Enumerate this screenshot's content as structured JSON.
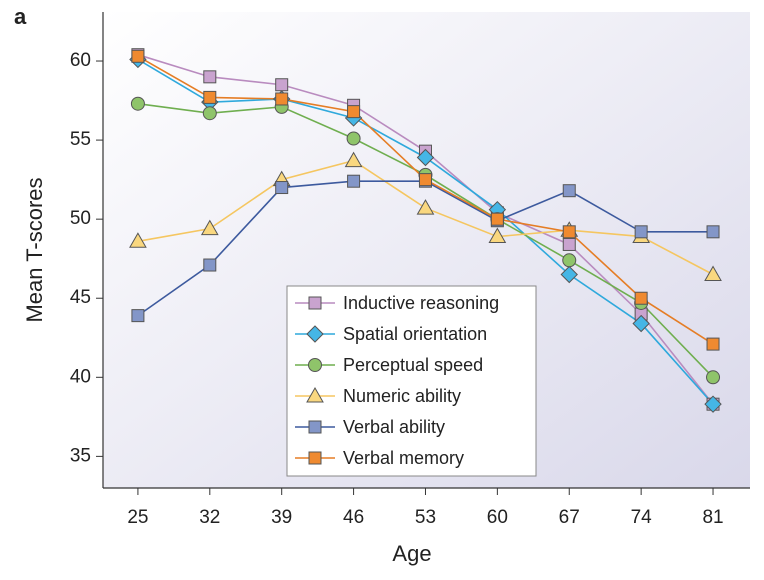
{
  "chart_data": {
    "type": "line",
    "panel_label": "a",
    "x_label": "Age",
    "y_label": "Mean T-scores",
    "x": [
      25,
      32,
      39,
      46,
      53,
      60,
      67,
      74,
      81
    ],
    "xlim": [
      21.6,
      84.6
    ],
    "xticks": [
      25,
      32,
      39,
      46,
      53,
      60,
      67,
      74,
      81
    ],
    "ylim": [
      33.0,
      63.1
    ],
    "yticks": [
      35,
      40,
      45,
      50,
      55,
      60
    ],
    "legend": "lower center",
    "series": [
      {
        "name": "Inductive reasoning",
        "color": "#b98bbf",
        "marker_color": "#c9a3cf",
        "marker": "square",
        "values": [
          60.4,
          59.0,
          58.5,
          57.2,
          54.3,
          50.4,
          48.4,
          44.0,
          38.3
        ]
      },
      {
        "name": "Spatial orientation",
        "color": "#2fa9dc",
        "marker_color": "#45b6e6",
        "marker": "diamond",
        "values": [
          60.1,
          57.4,
          57.6,
          56.4,
          53.9,
          50.6,
          46.5,
          43.4,
          38.3
        ]
      },
      {
        "name": "Perceptual speed",
        "color": "#6fae4f",
        "marker_color": "#8fc46a",
        "marker": "circle",
        "values": [
          57.3,
          56.7,
          57.1,
          55.1,
          52.8,
          50.0,
          47.4,
          44.7,
          40.0
        ]
      },
      {
        "name": "Numeric ability",
        "color": "#f5c660",
        "marker_color": "#f9d77f",
        "marker": "triangle",
        "values": [
          48.6,
          49.4,
          52.5,
          53.7,
          50.7,
          48.9,
          49.3,
          48.9,
          46.5
        ]
      },
      {
        "name": "Verbal ability",
        "color": "#3d5a9e",
        "marker_color": "#8396c8",
        "marker": "square",
        "values": [
          43.9,
          47.1,
          52.0,
          52.4,
          52.4,
          49.9,
          51.8,
          49.2,
          49.2
        ]
      },
      {
        "name": "Verbal memory",
        "color": "#e57d25",
        "marker_color": "#ef8a30",
        "marker": "square",
        "values": [
          60.3,
          57.7,
          57.6,
          56.8,
          52.5,
          50.0,
          49.2,
          45.0,
          42.1
        ]
      }
    ]
  }
}
